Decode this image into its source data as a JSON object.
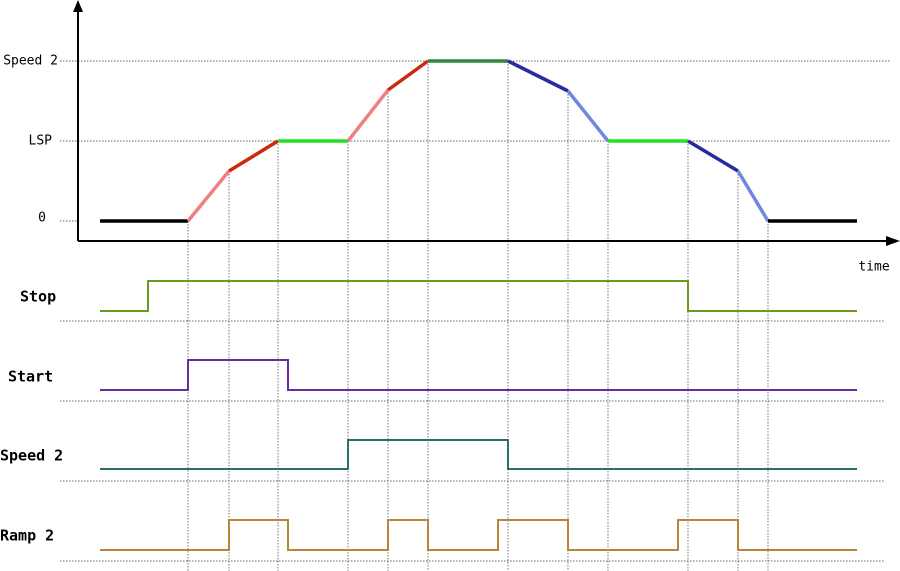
{
  "speed_axis": {
    "levels": [
      "Speed 2",
      "LSP",
      "0"
    ],
    "x_label": "time"
  },
  "signals": [
    "Stop",
    "Start",
    "Speed 2",
    "Ramp 2"
  ]
}
